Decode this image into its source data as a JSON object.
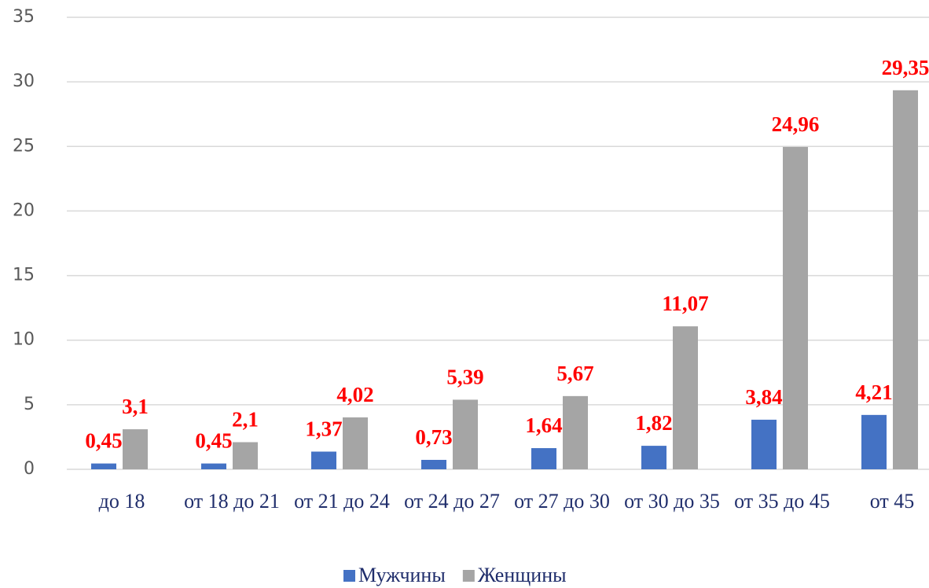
{
  "chart_data": {
    "type": "bar",
    "categories": [
      "до 18",
      "от 18 до 21",
      "от 21 до 24",
      "от 24 до 27",
      "от 27 до 30",
      "от 30 до 35",
      "от 35 до 45",
      "от 45"
    ],
    "series": [
      {
        "name": "Мужчины",
        "color": "#4472c4",
        "values": [
          0.45,
          0.45,
          1.37,
          0.73,
          1.64,
          1.82,
          3.84,
          4.21
        ],
        "value_labels": [
          "0,45",
          "0,45",
          "1,37",
          "0,73",
          "1,64",
          "1,82",
          "3,84",
          "4,21"
        ]
      },
      {
        "name": "Женщины",
        "color": "#a5a5a5",
        "values": [
          3.1,
          2.1,
          4.02,
          5.39,
          5.67,
          11.07,
          24.96,
          29.35
        ],
        "value_labels": [
          "3,1",
          "2,1",
          "4,02",
          "5,39",
          "5,67",
          "11,07",
          "24,96",
          "29,35"
        ]
      }
    ],
    "ylim": [
      0,
      35
    ],
    "yticks": [
      0,
      5,
      10,
      15,
      20,
      25,
      30,
      35
    ],
    "grid": true,
    "legend": "bottom"
  }
}
